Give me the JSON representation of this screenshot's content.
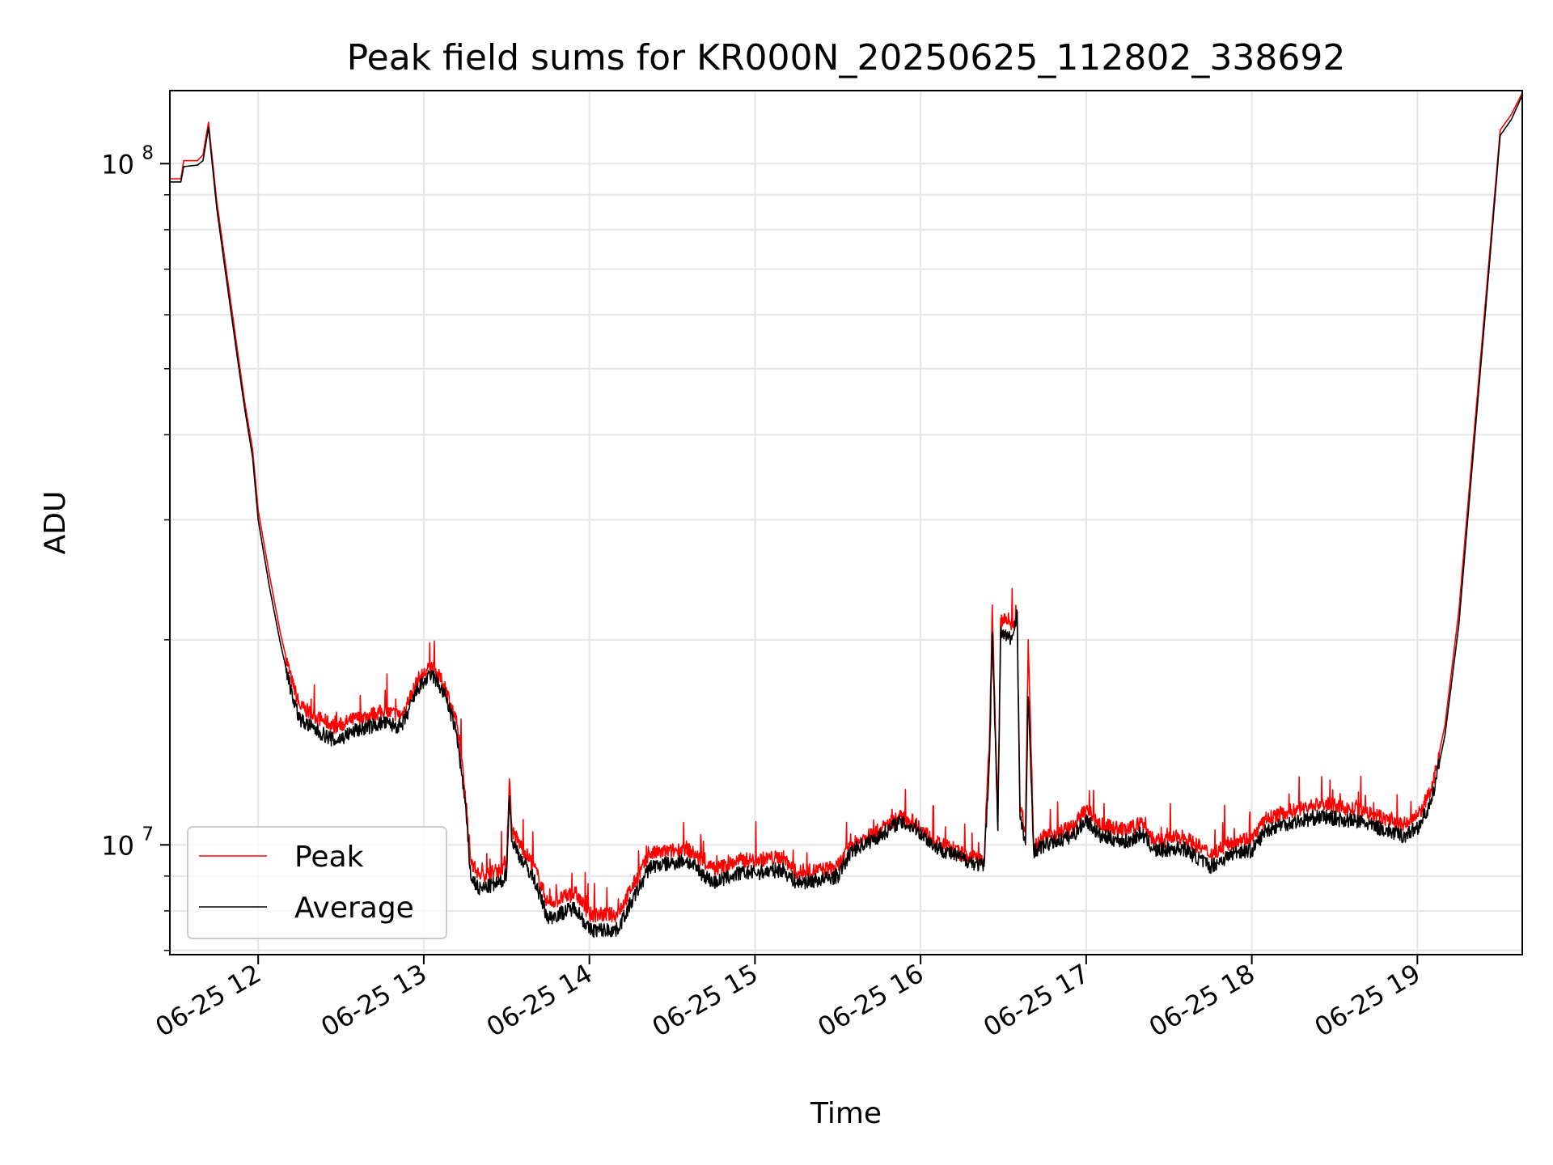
{
  "chart_data": {
    "type": "line",
    "title": "Peak field sums for KR000N_20250625_112802_338692",
    "xlabel": "Time",
    "ylabel": "ADU",
    "yscale": "log",
    "grid": true,
    "legend_position": "lower-left",
    "xlim": [
      "2025-06-25 11:28",
      "2025-06-25 19:38"
    ],
    "ylim": [
      6900000,
      128000000
    ],
    "x_ticks": [
      {
        "t": "2025-06-25 12:00",
        "label": "06-25 12"
      },
      {
        "t": "2025-06-25 13:00",
        "label": "06-25 13"
      },
      {
        "t": "2025-06-25 14:00",
        "label": "06-25 14"
      },
      {
        "t": "2025-06-25 15:00",
        "label": "06-25 15"
      },
      {
        "t": "2025-06-25 16:00",
        "label": "06-25 16"
      },
      {
        "t": "2025-06-25 17:00",
        "label": "06-25 17"
      },
      {
        "t": "2025-06-25 18:00",
        "label": "06-25 18"
      },
      {
        "t": "2025-06-25 19:00",
        "label": "06-25 19"
      }
    ],
    "y_major_ticks": [
      {
        "v": 10000000,
        "base": "10",
        "exp": "7"
      },
      {
        "v": 100000000,
        "base": "10",
        "exp": "8"
      }
    ],
    "y_minor_ticks": [
      7000000,
      8000000,
      9000000,
      20000000,
      30000000,
      40000000,
      50000000,
      60000000,
      70000000,
      80000000,
      90000000
    ],
    "series": [
      {
        "name": "Peak",
        "color": "#ff0000",
        "points": [
          [
            "2025-06-25 11:28",
            95000000
          ],
          [
            "2025-06-25 11:32",
            95000000
          ],
          [
            "2025-06-25 11:33",
            101000000
          ],
          [
            "2025-06-25 11:38",
            101000000
          ],
          [
            "2025-06-25 11:40",
            103000000
          ],
          [
            "2025-06-25 11:42",
            115000000
          ],
          [
            "2025-06-25 11:45",
            88000000
          ],
          [
            "2025-06-25 11:48",
            72000000
          ],
          [
            "2025-06-25 11:52",
            55000000
          ],
          [
            "2025-06-25 11:55",
            45000000
          ],
          [
            "2025-06-25 11:58",
            38000000
          ],
          [
            "2025-06-25 12:00",
            31000000
          ],
          [
            "2025-06-25 12:04",
            25000000
          ],
          [
            "2025-06-25 12:08",
            20500000
          ],
          [
            "2025-06-25 12:12",
            17500000
          ],
          [
            "2025-06-25 12:15",
            16000000
          ],
          [
            "2025-06-25 12:20",
            15500000
          ],
          [
            "2025-06-25 12:28",
            14900000
          ],
          [
            "2025-06-25 12:35",
            15300000
          ],
          [
            "2025-06-25 12:45",
            15700000
          ],
          [
            "2025-06-25 12:52",
            15500000
          ],
          [
            "2025-06-25 12:58",
            17500000
          ],
          [
            "2025-06-25 13:03",
            18300000
          ],
          [
            "2025-06-25 13:08",
            17000000
          ],
          [
            "2025-06-25 13:12",
            15000000
          ],
          [
            "2025-06-25 13:15",
            12000000
          ],
          [
            "2025-06-25 13:17",
            9500000
          ],
          [
            "2025-06-25 13:20",
            9000000
          ],
          [
            "2025-06-25 13:28",
            9200000
          ],
          [
            "2025-06-25 13:30",
            9500000
          ],
          [
            "2025-06-25 13:31",
            12500000
          ],
          [
            "2025-06-25 13:32",
            10500000
          ],
          [
            "2025-06-25 13:35",
            10000000
          ],
          [
            "2025-06-25 13:40",
            9300000
          ],
          [
            "2025-06-25 13:45",
            8200000
          ],
          [
            "2025-06-25 13:55",
            8500000
          ],
          [
            "2025-06-25 14:00",
            7900000
          ],
          [
            "2025-06-25 14:10",
            7900000
          ],
          [
            "2025-06-25 14:15",
            8600000
          ],
          [
            "2025-06-25 14:22",
            9700000
          ],
          [
            "2025-06-25 14:30",
            9800000
          ],
          [
            "2025-06-25 14:35",
            9900000
          ],
          [
            "2025-06-25 14:45",
            9200000
          ],
          [
            "2025-06-25 14:55",
            9500000
          ],
          [
            "2025-06-25 15:00",
            9500000
          ],
          [
            "2025-06-25 15:10",
            9600000
          ],
          [
            "2025-06-25 15:15",
            9100000
          ],
          [
            "2025-06-25 15:25",
            9200000
          ],
          [
            "2025-06-25 15:30",
            9300000
          ],
          [
            "2025-06-25 15:35",
            10000000
          ],
          [
            "2025-06-25 15:45",
            10500000
          ],
          [
            "2025-06-25 15:52",
            11000000
          ],
          [
            "2025-06-25 15:58",
            10800000
          ],
          [
            "2025-06-25 16:05",
            10100000
          ],
          [
            "2025-06-25 16:15",
            9700000
          ],
          [
            "2025-06-25 16:23",
            9500000
          ],
          [
            "2025-06-25 16:25",
            14500000
          ],
          [
            "2025-06-25 16:26",
            22500000
          ],
          [
            "2025-06-25 16:28",
            11000000
          ],
          [
            "2025-06-25 16:29",
            21500000
          ],
          [
            "2025-06-25 16:33",
            21000000
          ],
          [
            "2025-06-25 16:35",
            21500000
          ],
          [
            "2025-06-25 16:36",
            11500000
          ],
          [
            "2025-06-25 16:38",
            10500000
          ],
          [
            "2025-06-25 16:39",
            20000000
          ],
          [
            "2025-06-25 16:41",
            10000000
          ],
          [
            "2025-06-25 16:45",
            10300000
          ],
          [
            "2025-06-25 16:55",
            10600000
          ],
          [
            "2025-06-25 17:00",
            11300000
          ],
          [
            "2025-06-25 17:05",
            10700000
          ],
          [
            "2025-06-25 17:15",
            10500000
          ],
          [
            "2025-06-25 17:20",
            10800000
          ],
          [
            "2025-06-25 17:25",
            10100000
          ],
          [
            "2025-06-25 17:35",
            10300000
          ],
          [
            "2025-06-25 17:45",
            9700000
          ],
          [
            "2025-06-25 17:55",
            10200000
          ],
          [
            "2025-06-25 18:00",
            10200000
          ],
          [
            "2025-06-25 18:05",
            10900000
          ],
          [
            "2025-06-25 18:10",
            11100000
          ],
          [
            "2025-06-25 18:25",
            11500000
          ],
          [
            "2025-06-25 18:40",
            11200000
          ],
          [
            "2025-06-25 18:55",
            10700000
          ],
          [
            "2025-06-25 19:00",
            11000000
          ],
          [
            "2025-06-25 19:05",
            12000000
          ],
          [
            "2025-06-25 19:10",
            15000000
          ],
          [
            "2025-06-25 19:15",
            22000000
          ],
          [
            "2025-06-25 19:20",
            38000000
          ],
          [
            "2025-06-25 19:25",
            65000000
          ],
          [
            "2025-06-25 19:30",
            112000000
          ],
          [
            "2025-06-25 19:34",
            118000000
          ],
          [
            "2025-06-25 19:38",
            127000000
          ]
        ]
      },
      {
        "name": "Average",
        "color": "#000000",
        "points": [
          [
            "2025-06-25 11:28",
            94000000
          ],
          [
            "2025-06-25 11:32",
            94000000
          ],
          [
            "2025-06-25 11:33",
            99000000
          ],
          [
            "2025-06-25 11:38",
            99500000
          ],
          [
            "2025-06-25 11:40",
            101000000
          ],
          [
            "2025-06-25 11:42",
            113000000
          ],
          [
            "2025-06-25 11:45",
            86000000
          ],
          [
            "2025-06-25 11:48",
            70000000
          ],
          [
            "2025-06-25 11:52",
            53500000
          ],
          [
            "2025-06-25 11:55",
            44000000
          ],
          [
            "2025-06-25 11:58",
            37000000
          ],
          [
            "2025-06-25 12:00",
            30000000
          ],
          [
            "2025-06-25 12:04",
            24000000
          ],
          [
            "2025-06-25 12:08",
            19800000
          ],
          [
            "2025-06-25 12:12",
            16800000
          ],
          [
            "2025-06-25 12:15",
            15300000
          ],
          [
            "2025-06-25 12:20",
            14800000
          ],
          [
            "2025-06-25 12:28",
            14200000
          ],
          [
            "2025-06-25 12:35",
            14700000
          ],
          [
            "2025-06-25 12:45",
            15100000
          ],
          [
            "2025-06-25 12:52",
            14900000
          ],
          [
            "2025-06-25 12:58",
            17000000
          ],
          [
            "2025-06-25 13:03",
            17800000
          ],
          [
            "2025-06-25 13:08",
            16500000
          ],
          [
            "2025-06-25 13:12",
            14500000
          ],
          [
            "2025-06-25 13:15",
            11500000
          ],
          [
            "2025-06-25 13:17",
            9000000
          ],
          [
            "2025-06-25 13:20",
            8600000
          ],
          [
            "2025-06-25 13:28",
            8800000
          ],
          [
            "2025-06-25 13:30",
            9100000
          ],
          [
            "2025-06-25 13:31",
            11800000
          ],
          [
            "2025-06-25 13:32",
            10100000
          ],
          [
            "2025-06-25 13:35",
            9600000
          ],
          [
            "2025-06-25 13:40",
            8900000
          ],
          [
            "2025-06-25 13:45",
            7800000
          ],
          [
            "2025-06-25 13:55",
            8100000
          ],
          [
            "2025-06-25 14:00",
            7500000
          ],
          [
            "2025-06-25 14:10",
            7500000
          ],
          [
            "2025-06-25 14:15",
            8200000
          ],
          [
            "2025-06-25 14:22",
            9300000
          ],
          [
            "2025-06-25 14:30",
            9400000
          ],
          [
            "2025-06-25 14:35",
            9500000
          ],
          [
            "2025-06-25 14:45",
            8800000
          ],
          [
            "2025-06-25 14:55",
            9100000
          ],
          [
            "2025-06-25 15:00",
            9100000
          ],
          [
            "2025-06-25 15:10",
            9200000
          ],
          [
            "2025-06-25 15:15",
            8800000
          ],
          [
            "2025-06-25 15:25",
            8900000
          ],
          [
            "2025-06-25 15:30",
            9000000
          ],
          [
            "2025-06-25 15:35",
            9800000
          ],
          [
            "2025-06-25 15:45",
            10300000
          ],
          [
            "2025-06-25 15:52",
            10800000
          ],
          [
            "2025-06-25 15:58",
            10600000
          ],
          [
            "2025-06-25 16:05",
            9950000
          ],
          [
            "2025-06-25 16:15",
            9550000
          ],
          [
            "2025-06-25 16:23",
            9300000
          ],
          [
            "2025-06-25 16:25",
            13500000
          ],
          [
            "2025-06-25 16:26",
            20500000
          ],
          [
            "2025-06-25 16:28",
            10500000
          ],
          [
            "2025-06-25 16:29",
            20500000
          ],
          [
            "2025-06-25 16:33",
            20000000
          ],
          [
            "2025-06-25 16:35",
            22000000
          ],
          [
            "2025-06-25 16:36",
            11000000
          ],
          [
            "2025-06-25 16:38",
            10000000
          ],
          [
            "2025-06-25 16:39",
            16500000
          ],
          [
            "2025-06-25 16:41",
            9800000
          ],
          [
            "2025-06-25 16:45",
            10000000
          ],
          [
            "2025-06-25 16:55",
            10300000
          ],
          [
            "2025-06-25 17:00",
            10900000
          ],
          [
            "2025-06-25 17:05",
            10300000
          ],
          [
            "2025-06-25 17:15",
            10100000
          ],
          [
            "2025-06-25 17:20",
            10400000
          ],
          [
            "2025-06-25 17:25",
            9800000
          ],
          [
            "2025-06-25 17:35",
            9900000
          ],
          [
            "2025-06-25 17:45",
            9300000
          ],
          [
            "2025-06-25 17:55",
            9800000
          ],
          [
            "2025-06-25 18:00",
            9800000
          ],
          [
            "2025-06-25 18:05",
            10500000
          ],
          [
            "2025-06-25 18:10",
            10700000
          ],
          [
            "2025-06-25 18:25",
            11000000
          ],
          [
            "2025-06-25 18:40",
            10800000
          ],
          [
            "2025-06-25 18:55",
            10300000
          ],
          [
            "2025-06-25 19:00",
            10600000
          ],
          [
            "2025-06-25 19:05",
            11500000
          ],
          [
            "2025-06-25 19:10",
            14500000
          ],
          [
            "2025-06-25 19:15",
            21000000
          ],
          [
            "2025-06-25 19:20",
            36500000
          ],
          [
            "2025-06-25 19:25",
            63000000
          ],
          [
            "2025-06-25 19:30",
            110000000
          ],
          [
            "2025-06-25 19:34",
            116000000
          ],
          [
            "2025-06-25 19:38",
            126000000
          ]
        ]
      }
    ]
  }
}
